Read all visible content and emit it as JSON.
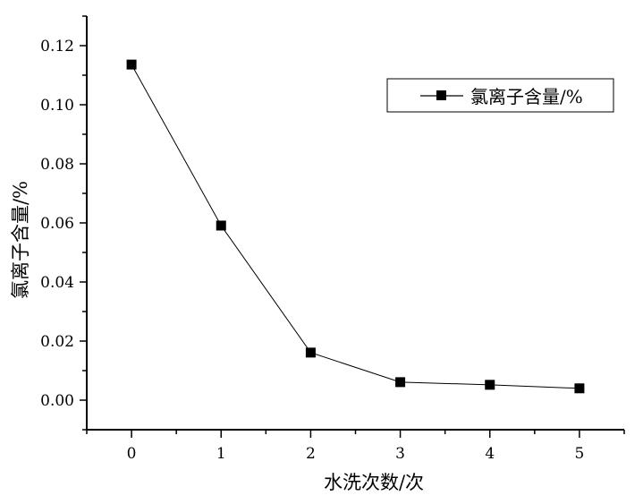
{
  "chart_data": {
    "type": "line",
    "title": "",
    "xlabel": "水洗次数/次",
    "ylabel": "氯离子含量/%",
    "xlim": [
      -0.5,
      5.5
    ],
    "ylim": [
      -0.01,
      0.13
    ],
    "xticks": [
      "0",
      "1",
      "2",
      "3",
      "4",
      "5"
    ],
    "xtick_values": [
      0,
      1,
      2,
      3,
      4,
      5
    ],
    "yticks": [
      "0.00",
      "0.02",
      "0.04",
      "0.06",
      "0.08",
      "0.10",
      "0.12"
    ],
    "ytick_values": [
      0,
      0.02,
      0.04,
      0.06,
      0.08,
      0.1,
      0.12
    ],
    "grid": false,
    "legend_placement": "top-right",
    "series": [
      {
        "name": "氯离子含量/%",
        "marker": "square",
        "color": "#000000",
        "x": [
          0,
          1,
          2,
          3,
          4,
          5
        ],
        "y": [
          0.1136,
          0.0591,
          0.0161,
          0.0061,
          0.0052,
          0.004
        ]
      }
    ]
  }
}
